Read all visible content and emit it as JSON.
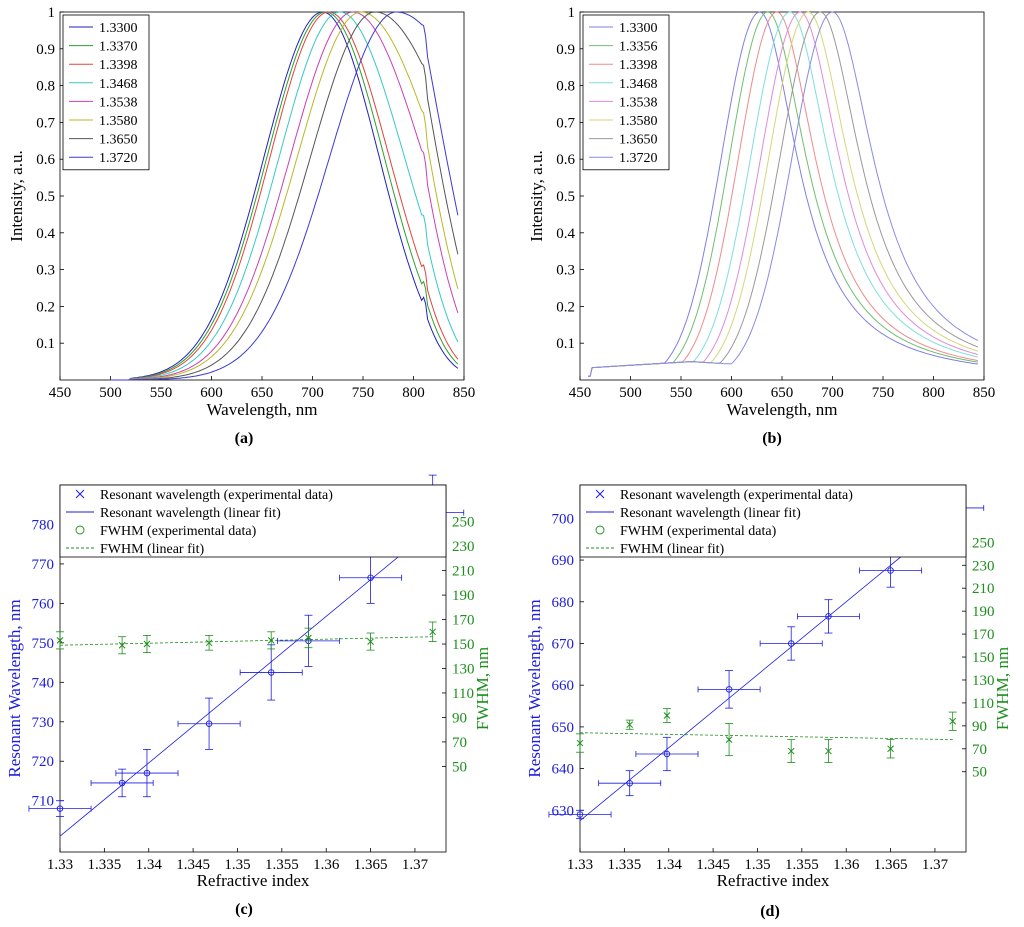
{
  "chart_data": [
    {
      "panel": "a",
      "caption": "(a)",
      "type": "line",
      "xlabel": "Wavelength, nm",
      "ylabel": "Intensity, a.u.",
      "xlim": [
        450,
        850
      ],
      "ylim": [
        0,
        1
      ],
      "xticks": [
        450,
        500,
        550,
        600,
        650,
        700,
        750,
        800,
        850
      ],
      "yticks": [
        0.1,
        0.2,
        0.3,
        0.4,
        0.5,
        0.6,
        0.7,
        0.8,
        0.9,
        1
      ],
      "legend_position": "top-left",
      "series": [
        {
          "name": "1.3300",
          "color": "#1f1fbf",
          "peak": 710,
          "sigmaLeft": 58,
          "sigmaRight": 56,
          "floor": 0.18
        },
        {
          "name": "1.3370",
          "color": "#2ca02c",
          "peak": 713,
          "sigmaLeft": 58,
          "sigmaRight": 58,
          "floor": 0.19
        },
        {
          "name": "1.3398",
          "color": "#e0433c",
          "peak": 716,
          "sigmaLeft": 58,
          "sigmaRight": 60,
          "floor": 0.2
        },
        {
          "name": "1.3468",
          "color": "#38c7c7",
          "peak": 727,
          "sigmaLeft": 60,
          "sigmaRight": 64,
          "floor": 0.22
        },
        {
          "name": "1.3538",
          "color": "#c93fb4",
          "peak": 740,
          "sigmaLeft": 62,
          "sigmaRight": 70,
          "floor": 0.26
        },
        {
          "name": "1.3580",
          "color": "#b8b82a",
          "peak": 748,
          "sigmaLeft": 63,
          "sigmaRight": 76,
          "floor": 0.3
        },
        {
          "name": "1.3650",
          "color": "#555555",
          "peak": 762,
          "sigmaLeft": 64,
          "sigmaRight": 84,
          "floor": 0.38
        },
        {
          "name": "1.3720",
          "color": "#3a3ad6",
          "peak": 783,
          "sigmaLeft": 66,
          "sigmaRight": 95,
          "floor": 0.5
        }
      ]
    },
    {
      "panel": "b",
      "caption": "(b)",
      "type": "line",
      "xlabel": "Wavelength, nm",
      "ylabel": "Intensity, a.u.",
      "xlim": [
        450,
        850
      ],
      "ylim": [
        0,
        1
      ],
      "xticks": [
        450,
        500,
        550,
        600,
        650,
        700,
        750,
        800,
        850
      ],
      "yticks": [
        0.1,
        0.2,
        0.3,
        0.4,
        0.5,
        0.6,
        0.7,
        0.8,
        0.9,
        1
      ],
      "legend_position": "top-left",
      "series": [
        {
          "name": "1.3300",
          "color": "#7f7fe0",
          "peak": 628,
          "sigmaLeft": 38,
          "sigmaRight": 46
        },
        {
          "name": "1.3356",
          "color": "#6fbf6f",
          "peak": 636,
          "sigmaLeft": 38,
          "sigmaRight": 47
        },
        {
          "name": "1.3398",
          "color": "#f08a8a",
          "peak": 645,
          "sigmaLeft": 38,
          "sigmaRight": 47
        },
        {
          "name": "1.3468",
          "color": "#7fdede",
          "peak": 658,
          "sigmaLeft": 39,
          "sigmaRight": 48
        },
        {
          "name": "1.3538",
          "color": "#e08ad8",
          "peak": 668,
          "sigmaLeft": 39,
          "sigmaRight": 48
        },
        {
          "name": "1.3580",
          "color": "#d6d67a",
          "peak": 676,
          "sigmaLeft": 39,
          "sigmaRight": 49
        },
        {
          "name": "1.3650",
          "color": "#999999",
          "peak": 688,
          "sigmaLeft": 40,
          "sigmaRight": 49
        },
        {
          "name": "1.3720",
          "color": "#8a8ae6",
          "peak": 700,
          "sigmaLeft": 40,
          "sigmaRight": 50
        }
      ]
    },
    {
      "panel": "c",
      "caption": "(c)",
      "type": "scatter",
      "xlabel": "Refractive index",
      "ylabel_left": "Resonant Wavelength, nm",
      "ylabel_right": "FWHM, nm",
      "xlim": [
        1.33,
        1.3735
      ],
      "ylim_left": [
        697,
        790
      ],
      "ylim_right": [
        -20,
        280
      ],
      "xticks": [
        "1.33",
        "1.335",
        "1.34",
        "1.345",
        "1.35",
        "1.355",
        "1.36",
        "1.365",
        "1.37"
      ],
      "yticks_left": [
        710,
        720,
        730,
        740,
        750,
        760,
        770,
        780
      ],
      "yticks_right": [
        50,
        70,
        90,
        110,
        130,
        150,
        170,
        190,
        210,
        230,
        250
      ],
      "legend_position": "top",
      "legend": [
        "Resonant wavelength (experimental data)",
        "Resonant wavelength (linear fit)",
        "FWHM (experimental data)",
        "FWHM (linear fit)"
      ],
      "x": [
        1.33,
        1.337,
        1.3398,
        1.3468,
        1.3538,
        1.358,
        1.365,
        1.372
      ],
      "resonant": [
        708,
        714.5,
        717,
        729.5,
        742.5,
        750.5,
        766.5,
        783
      ],
      "resonant_err": [
        2,
        3.5,
        6,
        6.5,
        7,
        6.5,
        6.5,
        9.5
      ],
      "x_err": [
        0.0035,
        0.0035,
        0.0035,
        0.0035,
        0.0035,
        0.0035,
        0.0035,
        0.0035
      ],
      "resonant_fit": [
        701,
        779
      ],
      "fwhm": [
        153,
        149,
        150,
        151,
        153,
        155,
        152,
        160
      ],
      "fwhm_err": [
        7,
        7,
        7,
        6,
        7,
        8,
        7,
        8
      ],
      "fwhm_fit": [
        149,
        156
      ]
    },
    {
      "panel": "d",
      "caption": "(d)",
      "type": "scatter",
      "xlabel": "Refractive index",
      "ylabel_left": "Resonant Wavelength, nm",
      "ylabel_right": "FWHM, nm",
      "xlim": [
        1.33,
        1.3735
      ],
      "ylim_left": [
        620,
        708
      ],
      "ylim_right": [
        -20,
        300
      ],
      "xticks": [
        "1.33",
        "1.335",
        "1.34",
        "1.345",
        "1.35",
        "1.355",
        "1.36",
        "1.365",
        "1.37"
      ],
      "yticks_left": [
        630,
        640,
        650,
        660,
        670,
        680,
        690,
        700
      ],
      "yticks_right": [
        50,
        70,
        90,
        110,
        130,
        150,
        170,
        190,
        210,
        230,
        250
      ],
      "legend_position": "top",
      "legend": [
        "Resonant wavelength (experimental data)",
        "Resonant wavelength (linear fit)",
        "FWHM (experimental data)",
        "FWHM (linear fit)"
      ],
      "x": [
        1.33,
        1.3356,
        1.3398,
        1.3468,
        1.3538,
        1.358,
        1.365,
        1.372
      ],
      "resonant": [
        629,
        636.5,
        643.5,
        659,
        670,
        676.5,
        687.5,
        702.5
      ],
      "resonant_err": [
        1,
        3,
        4,
        4.5,
        4,
        4,
        4,
        4.5
      ],
      "x_err": [
        0.0035,
        0.0035,
        0.0035,
        0.0035,
        0.0035,
        0.0035,
        0.0035,
        0.0035
      ],
      "resonant_fit": [
        627.5,
        701
      ],
      "fwhm": [
        75,
        91,
        99,
        78,
        68,
        68,
        70,
        94
      ],
      "fwhm_err": [
        8,
        4,
        6,
        14,
        10,
        10,
        8,
        8
      ],
      "fwhm_fit": [
        84,
        78
      ]
    }
  ]
}
